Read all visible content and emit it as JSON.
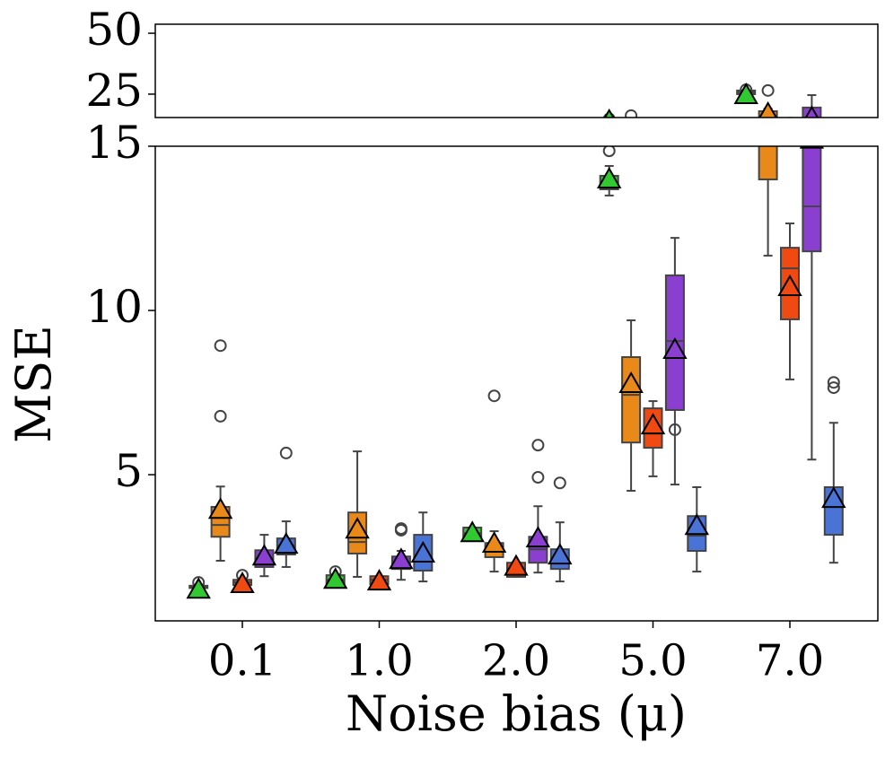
{
  "chart_data": {
    "type": "box",
    "xlabel": "Noise bias (μ)",
    "ylabel": "MSE",
    "categories": [
      "0.1",
      "1.0",
      "2.0",
      "5.0",
      "7.0"
    ],
    "panels": [
      {
        "ylim": [
          15.4,
          53.7
        ],
        "yticks": [
          25,
          50
        ]
      },
      {
        "ylim": [
          0.55,
          15
        ],
        "yticks": [
          5,
          10,
          15
        ]
      }
    ],
    "series": [
      {
        "color": "#32c832",
        "boxes": [
          {
            "whislo": 1.5,
            "q1": 1.55,
            "med": 1.58,
            "q3": 1.62,
            "whishi": 1.65,
            "mean": 1.5,
            "fliers": [
              1.72
            ]
          },
          {
            "whislo": 1.69,
            "q1": 1.69,
            "med": 1.8,
            "q3": 1.94,
            "whishi": 1.94,
            "mean": 1.8,
            "fliers": [
              2.05
            ]
          },
          {
            "whislo": 3.06,
            "q1": 3.06,
            "med": 3.22,
            "q3": 3.39,
            "whishi": 3.39,
            "mean": 3.22,
            "fliers": []
          },
          {
            "whislo": 13.5,
            "q1": 13.69,
            "med": 13.85,
            "q3": 14.1,
            "whishi": 14.4,
            "mean": 13.99,
            "fliers": [
              14.86
            ]
          },
          {
            "whislo": 24.8,
            "q1": 25,
            "med": 25.8,
            "q3": 26.5,
            "whishi": 26.5,
            "mean": 24.6,
            "fliers": [
              26.8
            ]
          }
        ]
      },
      {
        "color": "#e8891a",
        "boxes": [
          {
            "whislo": 2.38,
            "q1": 3.11,
            "med": 3.47,
            "q3": 4.02,
            "whishi": 4.64,
            "mean": 3.93,
            "fliers": [
              8.93,
              6.78
            ]
          },
          {
            "whislo": 1.89,
            "q1": 2.6,
            "med": 2.95,
            "q3": 3.85,
            "whishi": 5.71,
            "mean": 3.33,
            "fliers": []
          },
          {
            "whislo": 2.05,
            "q1": 2.49,
            "med": 2.73,
            "q3": 2.92,
            "whishi": 3.28,
            "mean": 2.9,
            "fliers": [
              7.4
            ]
          },
          {
            "whislo": 4.51,
            "q1": 5.98,
            "med": 7.43,
            "q3": 8.58,
            "whishi": 9.7,
            "mean": 7.76,
            "fliers": [
              16.2
            ]
          },
          {
            "whislo": 11.67,
            "q1": 13.99,
            "med": 15.8,
            "q3": 18,
            "whishi": 19,
            "mean": 16.9,
            "fliers": [
              26.5
            ]
          }
        ]
      },
      {
        "color": "#f04a12",
        "boxes": [
          {
            "whislo": 1.64,
            "q1": 1.64,
            "med": 1.72,
            "q3": 1.8,
            "whishi": 1.8,
            "mean": 1.67,
            "fliers": [
              1.94
            ]
          },
          {
            "whislo": 1.67,
            "q1": 1.67,
            "med": 1.8,
            "q3": 1.91,
            "whishi": 1.91,
            "mean": 1.75,
            "fliers": []
          },
          {
            "whislo": 1.89,
            "q1": 1.89,
            "med": 2.13,
            "q3": 2.32,
            "whishi": 2.32,
            "mean": 2.2,
            "fliers": []
          },
          {
            "whislo": 4.95,
            "q1": 5.82,
            "med": 6.34,
            "q3": 7.02,
            "whishi": 7.24,
            "mean": 6.5,
            "fliers": []
          },
          {
            "whislo": 7.9,
            "q1": 9.73,
            "med": 11.28,
            "q3": 11.91,
            "whishi": 12.65,
            "mean": 10.71,
            "fliers": []
          }
        ]
      },
      {
        "color": "#8a3fd0",
        "boxes": [
          {
            "whislo": 1.91,
            "q1": 2.19,
            "med": 2.46,
            "q3": 2.7,
            "whishi": 3.17,
            "mean": 2.51,
            "fliers": []
          },
          {
            "whislo": 1.8,
            "q1": 2.13,
            "med": 2.32,
            "q3": 2.51,
            "whishi": 2.68,
            "mean": 2.4,
            "fliers": [
              3.36,
              3.31
            ]
          },
          {
            "whislo": 2.02,
            "q1": 2.32,
            "med": 2.73,
            "q3": 3.11,
            "whishi": 4.04,
            "mean": 3.06,
            "fliers": [
              5.9,
              4.92
            ]
          },
          {
            "whislo": 4.7,
            "q1": 6.97,
            "med": 9.07,
            "q3": 11.07,
            "whishi": 12.21,
            "mean": 8.8,
            "fliers": [
              6.37
            ]
          },
          {
            "whislo": 5.46,
            "q1": 11.8,
            "med": 13.17,
            "q3": 19.5,
            "whishi": 24.6,
            "mean": 15.2,
            "fliers": []
          }
        ]
      },
      {
        "color": "#4a73d6",
        "boxes": [
          {
            "whislo": 2.19,
            "q1": 2.57,
            "med": 2.84,
            "q3": 3.06,
            "whishi": 3.58,
            "mean": 2.87,
            "fliers": [
              5.66
            ]
          },
          {
            "whislo": 1.75,
            "q1": 2.08,
            "med": 2.38,
            "q3": 3.17,
            "whishi": 3.85,
            "mean": 2.6,
            "fliers": []
          },
          {
            "whislo": 1.75,
            "q1": 2.13,
            "med": 2.4,
            "q3": 2.73,
            "whishi": 3.55,
            "mean": 2.54,
            "fliers": [
              4.75
            ]
          },
          {
            "whislo": 2.05,
            "q1": 2.68,
            "med": 3.14,
            "q3": 3.74,
            "whishi": 4.62,
            "mean": 3.44,
            "fliers": []
          },
          {
            "whislo": 2.32,
            "q1": 3.17,
            "med": 4.04,
            "q3": 4.62,
            "whishi": 6.58,
            "mean": 4.26,
            "fliers": [
              7.81,
              7.65
            ]
          }
        ]
      }
    ]
  }
}
